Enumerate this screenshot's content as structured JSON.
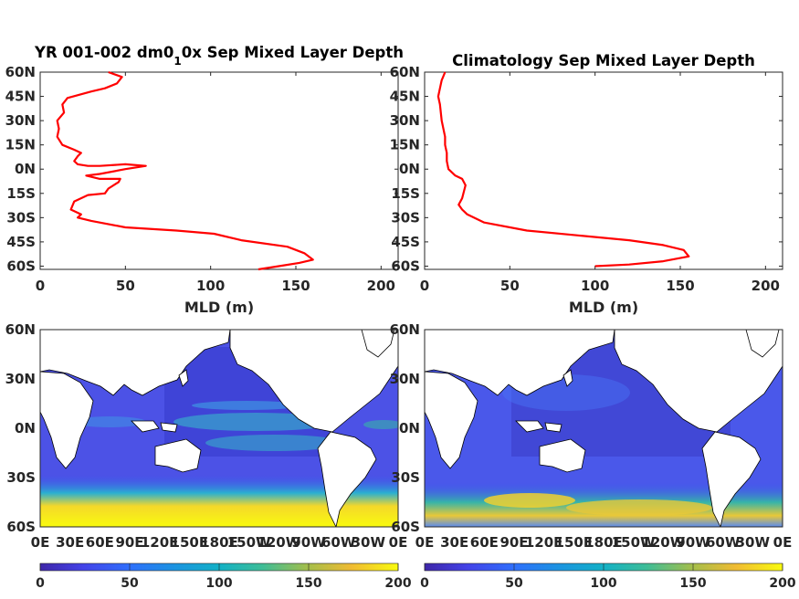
{
  "figure": {
    "panels": [
      {
        "title_a": "YR 001-002 dm0",
        "title_sub": "1",
        "title_b": "0x Sep Mixed Layer Depth"
      },
      {
        "title": "Climatology Sep Mixed Layer Depth"
      }
    ],
    "colors": {
      "line": "#ff0000",
      "map_low": "#3e26a8",
      "map_high": "#f9fb0e",
      "land": "#ffffff"
    }
  },
  "chart_data": [
    {
      "type": "line",
      "panel": "top-left",
      "xlabel": "MLD (m)",
      "xlim": [
        0,
        210
      ],
      "xticks": [
        0,
        50,
        100,
        150,
        200
      ],
      "ylim": [
        -62,
        60
      ],
      "yticks": [
        -60,
        -45,
        -30,
        -15,
        0,
        15,
        30,
        45,
        60
      ],
      "yticklabels": [
        "60S",
        "45S",
        "30S",
        "15S",
        "0N",
        "15N",
        "30N",
        "45N",
        "60N"
      ],
      "grid": false,
      "series": [
        {
          "color": "#ff0000",
          "x": [
            40,
            48,
            45,
            38,
            30,
            16,
            13,
            14,
            10,
            11,
            10,
            13,
            20,
            24,
            22,
            20,
            22,
            28,
            35,
            50,
            62,
            50,
            35,
            27,
            35,
            47,
            46,
            43,
            40,
            38,
            28,
            20,
            18,
            24,
            22,
            30,
            50,
            80,
            102,
            118,
            145,
            155,
            160,
            152,
            140,
            128
          ],
          "y": [
            60,
            57,
            53,
            50,
            48,
            44,
            40,
            35,
            30,
            25,
            20,
            15,
            12,
            10,
            8,
            5,
            3,
            2,
            2,
            3,
            2,
            0,
            -3,
            -4,
            -6,
            -6,
            -8,
            -10,
            -12,
            -15,
            -16,
            -20,
            -25,
            -28,
            -30,
            -32,
            -36,
            -38,
            -40,
            -44,
            -48,
            -52,
            -56,
            -58,
            -60,
            -62
          ]
        }
      ]
    },
    {
      "type": "line",
      "panel": "top-right",
      "xlabel": "MLD (m)",
      "xlim": [
        0,
        210
      ],
      "xticks": [
        0,
        50,
        100,
        150,
        200
      ],
      "ylim": [
        -62,
        60
      ],
      "yticks": [
        -60,
        -45,
        -30,
        -15,
        0,
        15,
        30,
        45,
        60
      ],
      "yticklabels": [
        "60S",
        "45S",
        "30S",
        "15S",
        "0N",
        "15N",
        "30N",
        "45N",
        "60N"
      ],
      "grid": false,
      "series": [
        {
          "color": "#ff0000",
          "x": [
            12,
            10,
            9,
            8,
            9,
            10,
            12,
            12,
            13,
            13,
            14,
            16,
            18,
            22,
            24,
            22,
            20,
            22,
            25,
            35,
            60,
            90,
            120,
            140,
            152,
            155,
            140,
            120,
            100
          ],
          "y": [
            60,
            55,
            50,
            45,
            40,
            30,
            20,
            15,
            10,
            5,
            0,
            -2,
            -4,
            -6,
            -10,
            -18,
            -22,
            -25,
            -28,
            -33,
            -38,
            -41,
            -44,
            -47,
            -50,
            -54,
            -57,
            -59,
            -60
          ]
        }
      ]
    },
    {
      "type": "heatmap",
      "panel": "bottom-left",
      "xticklabels": [
        "0E",
        "30E",
        "60E",
        "90E",
        "120E",
        "150E",
        "180E",
        "150W",
        "120W",
        "90W",
        "60W",
        "30W",
        "0E"
      ],
      "yticklabels": [
        "60S",
        "30S",
        "0N",
        "30N",
        "60N"
      ],
      "colorbar": {
        "min": 0,
        "max": 200,
        "ticks": [
          "0",
          "50",
          "100",
          "150",
          "200"
        ],
        "colormap": "parula"
      }
    },
    {
      "type": "heatmap",
      "panel": "bottom-right",
      "xticklabels": [
        "0E",
        "30E",
        "60E",
        "90E",
        "120E",
        "150E",
        "180E",
        "150W",
        "120W",
        "90W",
        "60W",
        "30W",
        "0E"
      ],
      "yticklabels": [
        "60S",
        "30S",
        "0N",
        "30N",
        "60N"
      ],
      "colorbar": {
        "min": 0,
        "max": 200,
        "ticks": [
          "0",
          "50",
          "100",
          "150",
          "200"
        ],
        "colormap": "parula"
      }
    }
  ]
}
